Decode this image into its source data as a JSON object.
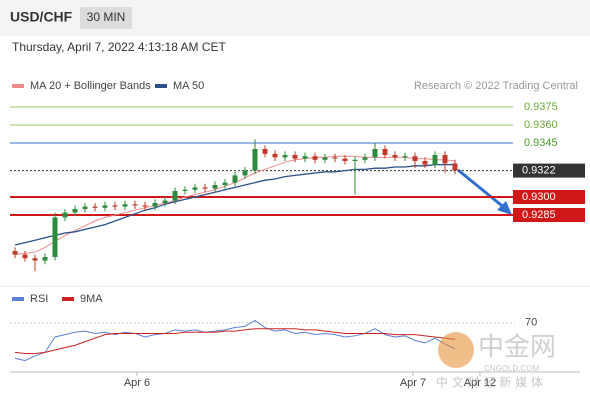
{
  "header": {
    "symbol": "USD/CHF",
    "interval": "30 MIN",
    "timestamp": "Thursday, April 7, 2022 4:13:18 AM CET"
  },
  "watermark": {
    "name": "中金网",
    "site": "CNGOLD.COM",
    "tagline": "中 文 财 经 新 媒 体"
  },
  "chart_data": [
    {
      "type": "candlestick",
      "credit": "Research © 2022 Trading Central",
      "up_color": "#2e8b3e",
      "down_color": "#c0392b",
      "open": [
        0.9255,
        0.9252,
        0.9249,
        0.9247,
        0.925,
        0.9283,
        0.9287,
        0.929,
        0.9292,
        0.9291,
        0.9293,
        0.9292,
        0.9294,
        0.9293,
        0.9292,
        0.9295,
        0.9297,
        0.9305,
        0.9306,
        0.9308,
        0.9307,
        0.931,
        0.9312,
        0.9318,
        0.9322,
        0.934,
        0.9336,
        0.9333,
        0.9335,
        0.9332,
        0.9334,
        0.9331,
        0.9333,
        0.9332,
        0.933,
        0.9331,
        0.9333,
        0.934,
        0.9335,
        0.9333,
        0.9334,
        0.933,
        0.9327,
        0.9335,
        0.9328
      ],
      "high": [
        0.9258,
        0.9255,
        0.9252,
        0.9253,
        0.9287,
        0.929,
        0.9293,
        0.9295,
        0.9295,
        0.9296,
        0.9296,
        0.9297,
        0.9297,
        0.9296,
        0.9298,
        0.93,
        0.9308,
        0.9309,
        0.9311,
        0.9311,
        0.9313,
        0.9315,
        0.9321,
        0.9325,
        0.9348,
        0.9343,
        0.9339,
        0.9338,
        0.9338,
        0.9337,
        0.9337,
        0.9336,
        0.9336,
        0.9335,
        0.9334,
        0.9336,
        0.9345,
        0.9343,
        0.9338,
        0.9337,
        0.9337,
        0.9333,
        0.9338,
        0.9338,
        0.9331
      ],
      "low": [
        0.9249,
        0.9246,
        0.9238,
        0.9244,
        0.9247,
        0.928,
        0.9284,
        0.9287,
        0.9288,
        0.9288,
        0.9289,
        0.9289,
        0.929,
        0.9289,
        0.9289,
        0.9292,
        0.9294,
        0.9302,
        0.9303,
        0.9304,
        0.9304,
        0.9307,
        0.9309,
        0.9315,
        0.9319,
        0.9333,
        0.933,
        0.933,
        0.9329,
        0.9329,
        0.9328,
        0.9328,
        0.9329,
        0.9327,
        0.9302,
        0.9328,
        0.933,
        0.9332,
        0.933,
        0.933,
        0.9324,
        0.9324,
        0.9324,
        0.932,
        0.9319
      ],
      "close": [
        0.9252,
        0.9249,
        0.9247,
        0.925,
        0.9283,
        0.9287,
        0.929,
        0.9292,
        0.9291,
        0.9293,
        0.9292,
        0.9294,
        0.9293,
        0.9292,
        0.9295,
        0.9297,
        0.9305,
        0.9306,
        0.9308,
        0.9307,
        0.931,
        0.9312,
        0.9318,
        0.9322,
        0.934,
        0.9336,
        0.9333,
        0.9335,
        0.9332,
        0.9334,
        0.9331,
        0.9333,
        0.9332,
        0.933,
        0.9331,
        0.9333,
        0.934,
        0.9335,
        0.9333,
        0.9334,
        0.933,
        0.9327,
        0.9335,
        0.9328,
        0.9322
      ],
      "series": [
        {
          "name": "MA 20 + Bollinger Bands",
          "color": "#f08a8a",
          "values": [
            0.9252,
            0.9253,
            0.9254,
            0.9258,
            0.9263,
            0.9268,
            0.9272,
            0.9276,
            0.928,
            0.9283,
            0.9285,
            0.9287,
            0.9289,
            0.9291,
            0.9293,
            0.9295,
            0.9297,
            0.93,
            0.9302,
            0.9304,
            0.9306,
            0.9309,
            0.9312,
            0.9316,
            0.932,
            0.9323,
            0.9326,
            0.9329,
            0.9331,
            0.9332,
            0.9333,
            0.9333,
            0.9334,
            0.9334,
            0.9334,
            0.9333,
            0.9333,
            0.9333,
            0.9333,
            0.9333,
            0.9332,
            0.9332,
            0.9331,
            0.9331,
            0.933
          ]
        },
        {
          "name": "MA 50",
          "color": "#2b4f8a",
          "values": [
            0.926,
            0.9262,
            0.9264,
            0.9266,
            0.9268,
            0.927,
            0.9271,
            0.9273,
            0.9275,
            0.9277,
            0.928,
            0.9283,
            0.9286,
            0.9289,
            0.9291,
            0.9294,
            0.9296,
            0.9298,
            0.93,
            0.9302,
            0.9304,
            0.9306,
            0.9308,
            0.931,
            0.9312,
            0.9314,
            0.9315,
            0.9317,
            0.9318,
            0.9319,
            0.932,
            0.9321,
            0.9321,
            0.9322,
            0.9323,
            0.9323,
            0.9324,
            0.9324,
            0.9325,
            0.9325,
            0.9326,
            0.9326,
            0.9327,
            0.9327,
            0.9327
          ]
        }
      ],
      "ylim": [
        0.922,
        0.939
      ],
      "levels": [
        {
          "value": 0.9375,
          "label": "0.9375",
          "color": "#9acd66",
          "box": false
        },
        {
          "value": 0.936,
          "label": "0.9360",
          "color": "#9acd66",
          "box": false
        },
        {
          "value": 0.9345,
          "label": "0.9345",
          "color": "#2f6fcf",
          "box": false
        },
        {
          "value": 0.9322,
          "label": "0.9322",
          "color": "#333333",
          "box": true
        },
        {
          "value": 0.93,
          "label": "0.9300",
          "color": "#d01818",
          "box": true
        },
        {
          "value": 0.9285,
          "label": "0.9285",
          "color": "#d01818",
          "box": true
        }
      ],
      "xticks": [
        {
          "value": 12.2,
          "label": "Apr 6"
        },
        {
          "value": 39.8,
          "label": "Apr 7"
        },
        {
          "value": 46.5,
          "label": "Apr 12"
        }
      ]
    },
    {
      "type": "line",
      "series": [
        {
          "name": "RSI",
          "color": "#5b7fd6",
          "values": [
            40,
            38,
            42,
            45,
            58,
            60,
            62,
            63,
            61,
            62,
            60,
            62,
            61,
            58,
            60,
            61,
            64,
            63,
            64,
            62,
            63,
            64,
            66,
            67,
            72,
            66,
            63,
            64,
            61,
            62,
            60,
            61,
            60,
            58,
            59,
            61,
            65,
            60,
            58,
            59,
            55,
            53,
            57,
            52,
            48
          ]
        },
        {
          "name": "9MA",
          "color": "#cc2222",
          "values": [
            45,
            44,
            44,
            45,
            47,
            49,
            51,
            54,
            57,
            60,
            61,
            61,
            61,
            61,
            61,
            61,
            61,
            62,
            62,
            62,
            62,
            63,
            63,
            64,
            65,
            65,
            65,
            65,
            65,
            64,
            64,
            63,
            62,
            61,
            61,
            61,
            61,
            61,
            60,
            60,
            60,
            59,
            58,
            57,
            56
          ]
        }
      ],
      "ylim": [
        25,
        80
      ],
      "yticks": [
        70
      ]
    }
  ]
}
